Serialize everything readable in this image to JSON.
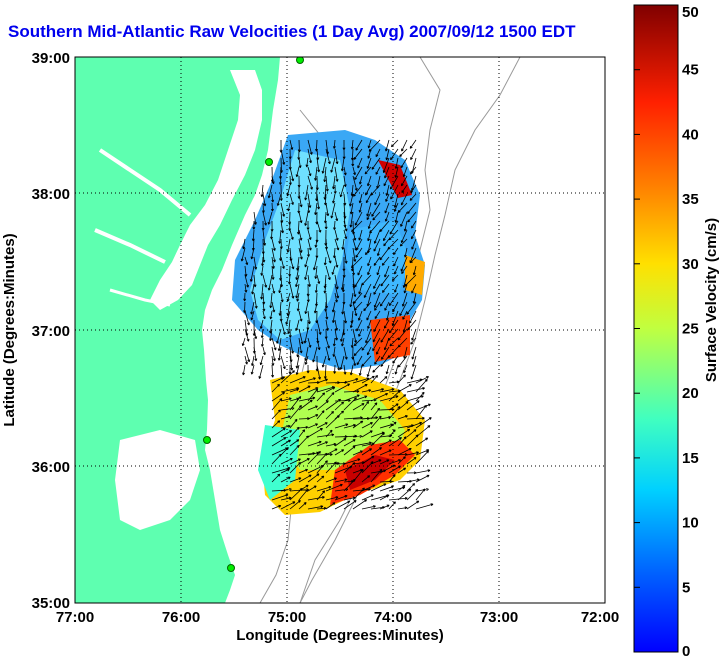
{
  "title": "Southern Mid-Atlantic Raw Velocities (1 Day Avg) 2007/09/12 1500 EDT",
  "map": {
    "xlabel": "Longitude (Degrees:Minutes)",
    "ylabel": "Latitude (Degrees:Minutes)",
    "lon_range": [
      -77,
      -72
    ],
    "lat_range": [
      35,
      39
    ],
    "x_ticks": [
      "77:00",
      "76:00",
      "75:00",
      "74:00",
      "73:00",
      "72:00"
    ],
    "y_ticks": [
      "39:00",
      "38:00",
      "37:00",
      "36:00",
      "35:00"
    ],
    "land_color": "#5effb0",
    "grid": true
  },
  "colorbar": {
    "label": "Surface Velocity (cm/s)",
    "min": 0,
    "max": 50,
    "ticks": [
      "0",
      "5",
      "10",
      "15",
      "20",
      "25",
      "30",
      "35",
      "40",
      "45",
      "50"
    ],
    "colormap": "jet"
  }
}
